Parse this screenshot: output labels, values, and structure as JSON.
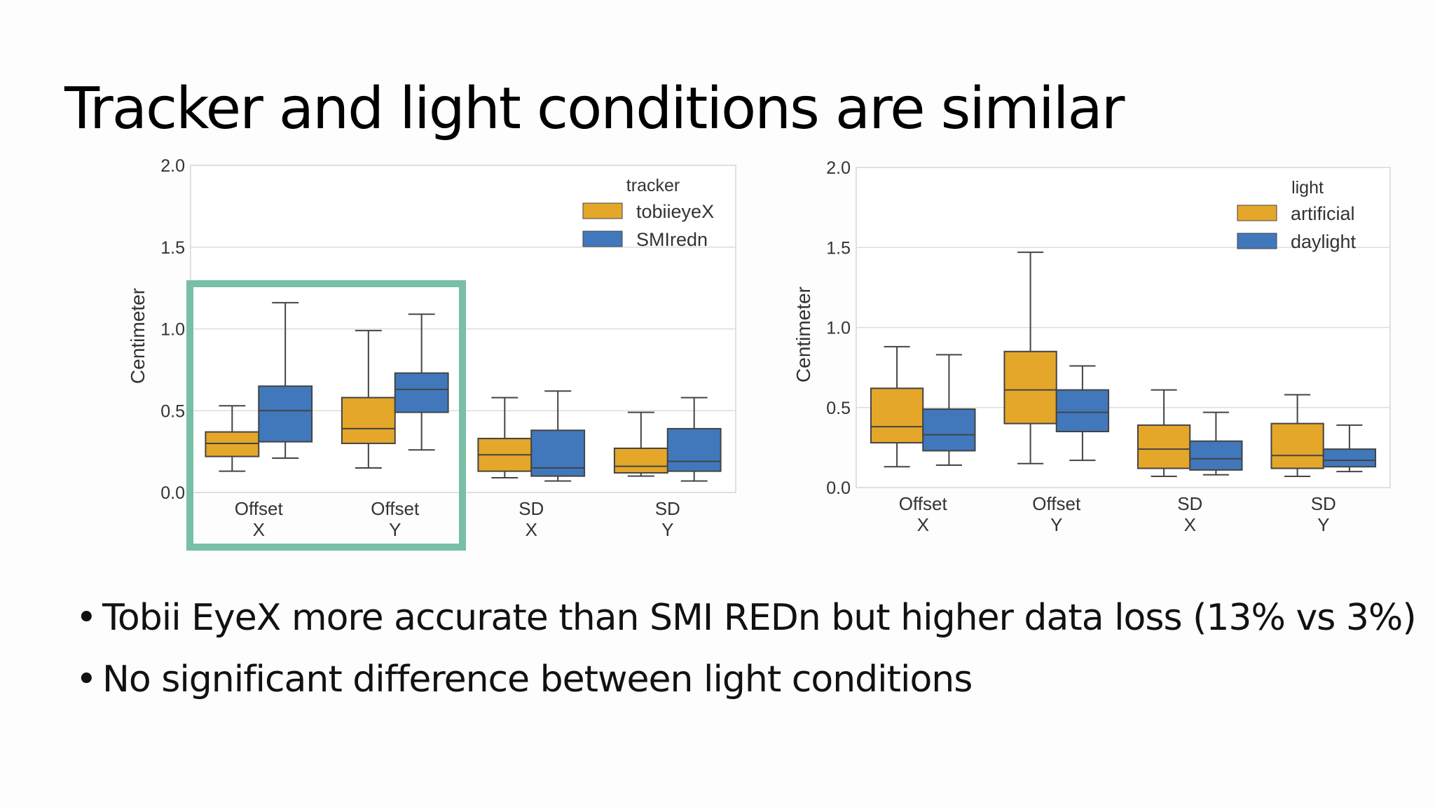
{
  "slide": {
    "title": "Tracker and light conditions are similar",
    "bullets": [
      "Tobii EyeX more accurate than SMI REDn but higher data loss (13% vs 3%)",
      "No significant difference between light conditions"
    ],
    "bullet_symbol": "•",
    "highlight_color": "#78bfa5"
  },
  "chart_data": [
    {
      "type": "box",
      "ylabel": "Centimeter",
      "ylim": [
        0.0,
        2.0
      ],
      "yticks": [
        "0.0",
        "0.5",
        "1.0",
        "1.5",
        "2.0"
      ],
      "grid": true,
      "categories": [
        [
          "Offset",
          "X"
        ],
        [
          "Offset",
          "Y"
        ],
        [
          "SD",
          "X"
        ],
        [
          "SD",
          "Y"
        ]
      ],
      "legend": {
        "title": "tracker",
        "position": "top-right"
      },
      "highlighted_categories": [
        0,
        1
      ],
      "series": [
        {
          "name": "tobiieyeX",
          "color": "#e4a72a",
          "boxes": [
            {
              "whislo": 0.13,
              "q1": 0.22,
              "med": 0.3,
              "q3": 0.37,
              "whishi": 0.53
            },
            {
              "whislo": 0.15,
              "q1": 0.3,
              "med": 0.39,
              "q3": 0.58,
              "whishi": 0.99
            },
            {
              "whislo": 0.09,
              "q1": 0.13,
              "med": 0.23,
              "q3": 0.33,
              "whishi": 0.58
            },
            {
              "whislo": 0.1,
              "q1": 0.12,
              "med": 0.16,
              "q3": 0.27,
              "whishi": 0.49
            }
          ]
        },
        {
          "name": "SMIredn",
          "color": "#4178bc",
          "boxes": [
            {
              "whislo": 0.21,
              "q1": 0.31,
              "med": 0.5,
              "q3": 0.65,
              "whishi": 1.16
            },
            {
              "whislo": 0.26,
              "q1": 0.49,
              "med": 0.63,
              "q3": 0.73,
              "whishi": 1.09
            },
            {
              "whislo": 0.07,
              "q1": 0.1,
              "med": 0.15,
              "q3": 0.38,
              "whishi": 0.62
            },
            {
              "whislo": 0.07,
              "q1": 0.13,
              "med": 0.19,
              "q3": 0.39,
              "whishi": 0.58
            }
          ]
        }
      ]
    },
    {
      "type": "box",
      "ylabel": "Centimeter",
      "ylim": [
        0.0,
        2.0
      ],
      "yticks": [
        "0.0",
        "0.5",
        "1.0",
        "1.5",
        "2.0"
      ],
      "grid": true,
      "categories": [
        [
          "Offset",
          "X"
        ],
        [
          "Offset",
          "Y"
        ],
        [
          "SD",
          "X"
        ],
        [
          "SD",
          "Y"
        ]
      ],
      "legend": {
        "title": "light",
        "position": "top-right"
      },
      "series": [
        {
          "name": "artificial",
          "color": "#e4a72a",
          "boxes": [
            {
              "whislo": 0.13,
              "q1": 0.28,
              "med": 0.38,
              "q3": 0.62,
              "whishi": 0.88
            },
            {
              "whislo": 0.15,
              "q1": 0.4,
              "med": 0.61,
              "q3": 0.85,
              "whishi": 1.47
            },
            {
              "whislo": 0.07,
              "q1": 0.12,
              "med": 0.24,
              "q3": 0.39,
              "whishi": 0.61
            },
            {
              "whislo": 0.07,
              "q1": 0.12,
              "med": 0.2,
              "q3": 0.4,
              "whishi": 0.58
            }
          ]
        },
        {
          "name": "daylight",
          "color": "#4178bc",
          "boxes": [
            {
              "whislo": 0.14,
              "q1": 0.23,
              "med": 0.33,
              "q3": 0.49,
              "whishi": 0.83
            },
            {
              "whislo": 0.17,
              "q1": 0.35,
              "med": 0.47,
              "q3": 0.61,
              "whishi": 0.76
            },
            {
              "whislo": 0.08,
              "q1": 0.11,
              "med": 0.18,
              "q3": 0.29,
              "whishi": 0.47
            },
            {
              "whislo": 0.1,
              "q1": 0.13,
              "med": 0.17,
              "q3": 0.24,
              "whishi": 0.39
            }
          ]
        }
      ]
    }
  ]
}
